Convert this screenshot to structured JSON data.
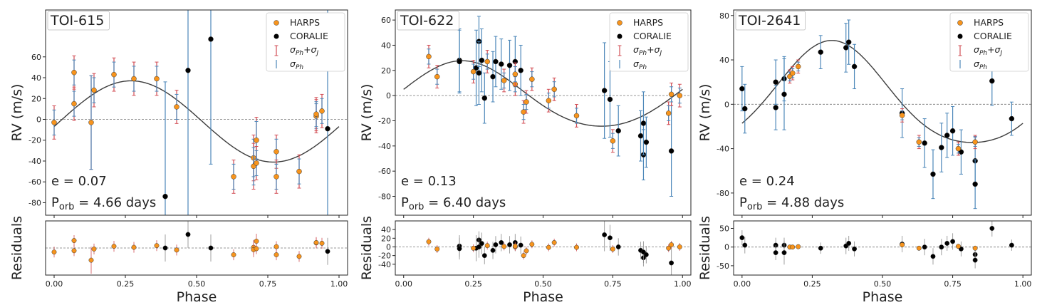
{
  "legend_labels": {
    "harps": "HARPS",
    "coralie": "CORALIE",
    "err_total_main": "σ",
    "err_total_sub": "Ph",
    "err_total_plus": "+σ",
    "err_total_sub2": "J",
    "err_ph_main": "σ",
    "err_ph_sub": "Ph"
  },
  "colors": {
    "harps": "#f7941d",
    "coralie": "#000000",
    "err_total": "#d24e55",
    "err_ph": "#4c87b9",
    "model": "#3c3c3c",
    "ref": "#777777"
  },
  "chart_data": [
    {
      "type": "scatter",
      "title": "TOI-615",
      "ylabel": "RV (m/s)",
      "res_ylabel": "Residuals",
      "xlabel": "Phase",
      "ecc_label": "e = 0.07",
      "porb_label": "P",
      "porb_sub": "orb",
      "porb_value": " = 4.66 days",
      "xlim": [
        -0.03,
        1.03
      ],
      "ylim": [
        -92,
        105
      ],
      "yticks": [
        -80,
        -60,
        -40,
        -20,
        0,
        20,
        40,
        60
      ],
      "res_ylim": [
        -80,
        80
      ],
      "res_yticks": [],
      "xticks": [
        0.0,
        0.25,
        0.5,
        0.75,
        1.0
      ],
      "xtick_labels": [
        "0.00",
        "0.25",
        "0.50",
        "0.75",
        "1.00"
      ],
      "model": {
        "amp": 39,
        "phase0": 0.27,
        "offset": -2,
        "ecc_shape": 0.0
      },
      "harps": [
        [
          0.0,
          -3,
          16,
          12,
          -12
        ],
        [
          0.07,
          45,
          16,
          12,
          22
        ],
        [
          0.07,
          15,
          16,
          12,
          -8
        ],
        [
          0.13,
          -3,
          45,
          45,
          -36
        ],
        [
          0.14,
          28,
          16,
          12,
          -3
        ],
        [
          0.21,
          43,
          16,
          12,
          5
        ],
        [
          0.28,
          39,
          16,
          12,
          2
        ],
        [
          0.36,
          39,
          16,
          12,
          7
        ],
        [
          0.43,
          12,
          16,
          12,
          -6
        ],
        [
          0.63,
          -55,
          16,
          12,
          -20
        ],
        [
          0.7,
          -37,
          22,
          18,
          2
        ],
        [
          0.7,
          -45,
          22,
          18,
          -5
        ],
        [
          0.71,
          -20,
          22,
          18,
          20
        ],
        [
          0.71,
          -42,
          16,
          12,
          -2
        ],
        [
          0.78,
          -31,
          16,
          12,
          4
        ],
        [
          0.78,
          -55,
          16,
          12,
          -20
        ],
        [
          0.86,
          -50,
          16,
          12,
          -25
        ],
        [
          0.92,
          3,
          16,
          12,
          15
        ],
        [
          0.92,
          5,
          16,
          12,
          16
        ],
        [
          0.94,
          8,
          16,
          12,
          14
        ]
      ],
      "coralie": [
        [
          0.39,
          -74,
          110,
          110,
          0
        ],
        [
          0.47,
          47,
          150,
          150,
          40
        ],
        [
          0.55,
          77,
          120,
          120,
          0
        ],
        [
          0.96,
          -9,
          150,
          150,
          -10
        ]
      ],
      "labels": {}
    },
    {
      "type": "scatter",
      "title": "TOI-622",
      "ylabel": "RV (m/s)",
      "res_ylabel": "Residuals",
      "xlabel": "Phase",
      "ecc_label": "e = 0.13",
      "porb_label": "P",
      "porb_sub": "orb",
      "porb_value": " = 6.40 days",
      "xlim": [
        -0.03,
        1.03
      ],
      "ylim": [
        -95,
        68
      ],
      "yticks": [
        -80,
        -60,
        -40,
        -20,
        0,
        20,
        40,
        60
      ],
      "res_ylim": [
        -65,
        60
      ],
      "res_yticks": [
        -40,
        -20,
        0,
        20,
        40
      ],
      "xticks": [
        0.0,
        0.25,
        0.5,
        0.75,
        1.0
      ],
      "xtick_labels": [
        "0.00",
        "0.25",
        "0.50",
        "0.75",
        "1.00"
      ],
      "model": {
        "amp": 26,
        "phase0": 0.21,
        "offset": 0,
        "ecc_shape": 0.13
      },
      "harps": [
        [
          0.09,
          31,
          9,
          6,
          12
        ],
        [
          0.12,
          15,
          9,
          6,
          -5
        ],
        [
          0.25,
          19,
          9,
          6,
          -3
        ],
        [
          0.3,
          27,
          9,
          6,
          3
        ],
        [
          0.36,
          12,
          9,
          6,
          1
        ],
        [
          0.4,
          9,
          9,
          6,
          0
        ],
        [
          0.4,
          17,
          9,
          6,
          2
        ],
        [
          0.43,
          -13,
          9,
          6,
          -20
        ],
        [
          0.44,
          -5,
          9,
          6,
          -9
        ],
        [
          0.46,
          13,
          9,
          6,
          6
        ],
        [
          0.52,
          -4,
          9,
          6,
          -1
        ],
        [
          0.54,
          5,
          9,
          6,
          10
        ],
        [
          0.62,
          -16,
          9,
          6,
          -1
        ],
        [
          0.75,
          -36,
          9,
          6,
          -5
        ],
        [
          0.95,
          -14,
          9,
          6,
          -3
        ],
        [
          0.96,
          1,
          9,
          6,
          5
        ],
        [
          0.99,
          0,
          9,
          6,
          0
        ]
      ],
      "coralie": [
        [
          0.2,
          28,
          25,
          25,
          2
        ],
        [
          0.2,
          27,
          25,
          25,
          -4
        ],
        [
          0.26,
          22,
          30,
          30,
          -3
        ],
        [
          0.27,
          43,
          20,
          20,
          16
        ],
        [
          0.27,
          18,
          25,
          25,
          0
        ],
        [
          0.28,
          28,
          25,
          25,
          8
        ],
        [
          0.29,
          -2,
          20,
          20,
          -20
        ],
        [
          0.32,
          15,
          20,
          20,
          -8
        ],
        [
          0.33,
          27,
          20,
          20,
          5
        ],
        [
          0.35,
          25,
          20,
          20,
          10
        ],
        [
          0.38,
          24,
          20,
          20,
          5
        ],
        [
          0.4,
          27,
          20,
          20,
          10
        ],
        [
          0.42,
          20,
          20,
          20,
          4
        ],
        [
          0.72,
          4,
          38,
          38,
          28
        ],
        [
          0.74,
          -3,
          30,
          30,
          21
        ],
        [
          0.77,
          -28,
          20,
          20,
          0
        ],
        [
          0.85,
          -32,
          20,
          20,
          -8
        ],
        [
          0.86,
          -47,
          20,
          20,
          -25
        ],
        [
          0.86,
          -22,
          25,
          25,
          -12
        ],
        [
          0.87,
          -37,
          20,
          20,
          -18
        ],
        [
          0.96,
          -44,
          36,
          36,
          -37
        ]
      ],
      "labels": {}
    },
    {
      "type": "scatter",
      "title": "TOI-2641",
      "ylabel": "RV (m/s)",
      "res_ylabel": "Residuals",
      "xlabel": "Phase",
      "ecc_label": "e = 0.24",
      "porb_label": "P",
      "porb_sub": "orb",
      "porb_value": " = 4.88 days",
      "xlim": [
        -0.03,
        1.03
      ],
      "ylim": [
        -100,
        85
      ],
      "yticks": [
        -80,
        -40,
        0,
        40,
        80
      ],
      "res_ylim": [
        -75,
        70
      ],
      "res_yticks": [
        -50,
        0,
        50
      ],
      "xticks": [
        0.0,
        0.25,
        0.5,
        0.75,
        1.0
      ],
      "xtick_labels": [
        "0.00",
        "0.25",
        "0.50",
        "0.75",
        "1.00"
      ],
      "model": {
        "amp": 46,
        "phase0": 0.32,
        "offset": 6,
        "ecc_shape": 0.24
      },
      "harps": [
        [
          0.17,
          25,
          6,
          4,
          0
        ],
        [
          0.18,
          28,
          6,
          4,
          0
        ],
        [
          0.2,
          34,
          6,
          4,
          1
        ],
        [
          0.57,
          -10,
          6,
          4,
          6
        ],
        [
          0.63,
          -34,
          6,
          4,
          -3
        ],
        [
          0.77,
          -40,
          6,
          4,
          2
        ],
        [
          0.83,
          -34,
          6,
          4,
          -3
        ]
      ],
      "coralie": [
        [
          0.0,
          14,
          20,
          20,
          25
        ],
        [
          0.01,
          -4,
          22,
          22,
          5
        ],
        [
          0.12,
          20,
          20,
          20,
          5
        ],
        [
          0.12,
          -3,
          20,
          20,
          -15
        ],
        [
          0.15,
          23,
          20,
          20,
          5
        ],
        [
          0.15,
          9,
          32,
          32,
          -15
        ],
        [
          0.28,
          47,
          15,
          15,
          -3
        ],
        [
          0.37,
          51,
          22,
          22,
          3
        ],
        [
          0.38,
          56,
          20,
          20,
          10
        ],
        [
          0.4,
          34,
          20,
          20,
          -5
        ],
        [
          0.57,
          -8,
          22,
          22,
          8
        ],
        [
          0.65,
          -35,
          22,
          22,
          0
        ],
        [
          0.68,
          -63,
          22,
          22,
          -25
        ],
        [
          0.71,
          -39,
          22,
          22,
          0
        ],
        [
          0.73,
          -28,
          20,
          20,
          10
        ],
        [
          0.75,
          -24,
          22,
          22,
          15
        ],
        [
          0.78,
          -43,
          20,
          20,
          -5
        ],
        [
          0.83,
          -51,
          22,
          22,
          -20
        ],
        [
          0.83,
          -72,
          22,
          22,
          -35
        ],
        [
          0.89,
          21,
          22,
          22,
          50
        ],
        [
          0.96,
          -13,
          15,
          15,
          5
        ]
      ],
      "labels": {}
    }
  ]
}
